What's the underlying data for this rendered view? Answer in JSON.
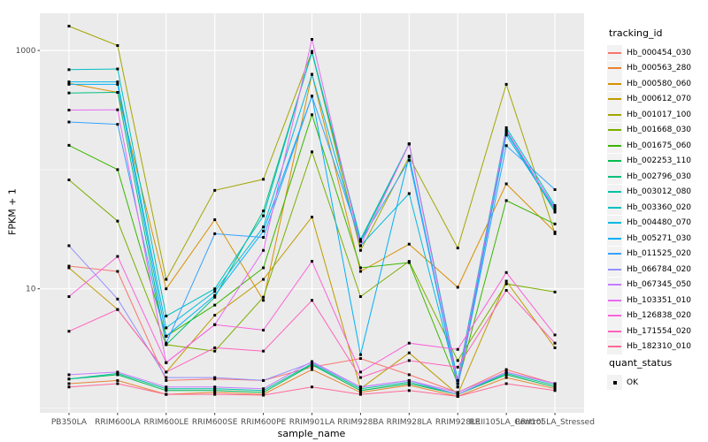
{
  "chart_data": {
    "type": "line",
    "xlabel": "sample_name",
    "ylabel": "FPKM + 1",
    "y_scale": "log10",
    "y_major_ticks": [
      10,
      1000
    ],
    "y_minor_gridlines": [
      1,
      100
    ],
    "ylim": [
      1,
      2000
    ],
    "panel_bg": "#EBEBEB",
    "gridline_color": "#FFFFFF",
    "point_color": "#000000",
    "tick_label_color": "#4D4D4D",
    "legend": {
      "title": "tracking_id",
      "position": "right"
    },
    "quant_legend": {
      "title": "quant_status",
      "items": [
        {
          "label": "OK",
          "symbol": "black-square-point"
        }
      ]
    },
    "categories": [
      "PB350LA",
      "RRIM600LA",
      "RRIM600LE",
      "RRIM600SE",
      "RRIM600PE",
      "RRIM901LA",
      "RRIM928BA",
      "RRIM928LA",
      "RRIM928LE",
      "RRII105LA_Control",
      "RRII105LA_Stressed"
    ],
    "series": [
      {
        "name": "Hb_000454_030",
        "color": "#F8766D",
        "values": [
          15.5,
          14,
          1.7,
          1.75,
          1.7,
          2.2,
          2.6,
          1.9,
          1.35,
          2.1,
          1.6
        ]
      },
      {
        "name": "Hb_000563_280",
        "color": "#EA8331",
        "values": [
          1.6,
          1.7,
          1.3,
          1.35,
          1.3,
          2.1,
          1.35,
          1.55,
          1.25,
          1.8,
          1.45
        ]
      },
      {
        "name": "Hb_000580_060",
        "color": "#D89000",
        "values": [
          530,
          445,
          10,
          38,
          8,
          630,
          14,
          23.7,
          10.3,
          76,
          30
        ]
      },
      {
        "name": "Hb_000612_070",
        "color": "#C09B00",
        "values": [
          15,
          6.7,
          2.0,
          6.0,
          12,
          40,
          1.45,
          2.9,
          1.3,
          11.6,
          3.2
        ]
      },
      {
        "name": "Hb_001017_100",
        "color": "#A3A500",
        "values": [
          1600,
          1100,
          12,
          67,
          83,
          980,
          21,
          128,
          22,
          520,
          29
        ]
      },
      {
        "name": "Hb_001668_030",
        "color": "#7CAE00",
        "values": [
          82,
          37,
          3.4,
          3.0,
          8.5,
          141,
          8.6,
          17,
          2.5,
          11,
          9.4
        ]
      },
      {
        "name": "Hb_001675_060",
        "color": "#39B600",
        "values": [
          160,
          100,
          4.0,
          7.3,
          15,
          289,
          15,
          16.6,
          1.6,
          55,
          35
        ]
      },
      {
        "name": "Hb_002253_110",
        "color": "#00BB4E",
        "values": [
          1.75,
          1.9,
          1.4,
          1.4,
          1.35,
          2.3,
          1.4,
          1.6,
          1.3,
          1.9,
          1.5
        ]
      },
      {
        "name": "Hb_002796_030",
        "color": "#00BF7D",
        "values": [
          440,
          445,
          3.4,
          8.5,
          45,
          960,
          25,
          164,
          1.7,
          210,
          44
        ]
      },
      {
        "name": "Hb_003012_080",
        "color": "#00C1A3",
        "values": [
          1.75,
          1.95,
          1.45,
          1.45,
          1.4,
          2.35,
          1.45,
          1.65,
          1.3,
          1.95,
          1.55
        ]
      },
      {
        "name": "Hb_003360_020",
        "color": "#00BFC4",
        "values": [
          690,
          700,
          5.9,
          10,
          41,
          980,
          26,
          165,
          1.7,
          225,
          50
        ]
      },
      {
        "name": "Hb_004480_070",
        "color": "#00BAE0",
        "values": [
          545,
          545,
          4.7,
          9.5,
          33,
          630,
          23,
          63,
          1.6,
          205,
          48
        ]
      },
      {
        "name": "Hb_005271_030",
        "color": "#00B0F6",
        "values": [
          520,
          520,
          4.0,
          8.8,
          30.5,
          414,
          2.8,
          130,
          1.5,
          195,
          46
        ]
      },
      {
        "name": "Hb_011525_020",
        "color": "#35A2FF",
        "values": [
          251,
          240,
          3.5,
          29,
          27,
          414,
          25,
          120,
          1.5,
          159,
          68
        ]
      },
      {
        "name": "Hb_066784_020",
        "color": "#9590FF",
        "values": [
          23,
          8.2,
          1.8,
          1.8,
          1.7,
          2.4,
          1.5,
          1.7,
          1.3,
          2.0,
          1.6
        ]
      },
      {
        "name": "Hb_067345_050",
        "color": "#C77CFF",
        "values": [
          1.9,
          2.0,
          1.5,
          1.5,
          1.45,
          2.45,
          1.5,
          1.7,
          1.35,
          2.0,
          1.6
        ]
      },
      {
        "name": "Hb_103351_010",
        "color": "#E76BF3",
        "values": [
          316,
          318,
          2.4,
          5.0,
          21,
          1240,
          23,
          164,
          1.6,
          215,
          47
        ]
      },
      {
        "name": "Hb_126838_020",
        "color": "#FA62DB",
        "values": [
          8.6,
          18.7,
          2.4,
          5.0,
          4.5,
          17,
          2.0,
          3.5,
          3.1,
          13.7,
          4.1
        ]
      },
      {
        "name": "Hb_171554_020",
        "color": "#FF62BC",
        "values": [
          4.4,
          6.7,
          2.0,
          3.2,
          3.0,
          8.0,
          1.8,
          2.5,
          2.2,
          9.7,
          3.5
        ]
      },
      {
        "name": "Hb_182310_010",
        "color": "#FF6A98",
        "values": [
          1.5,
          1.6,
          1.3,
          1.3,
          1.28,
          1.5,
          1.3,
          1.4,
          1.25,
          1.6,
          1.4
        ]
      }
    ]
  }
}
